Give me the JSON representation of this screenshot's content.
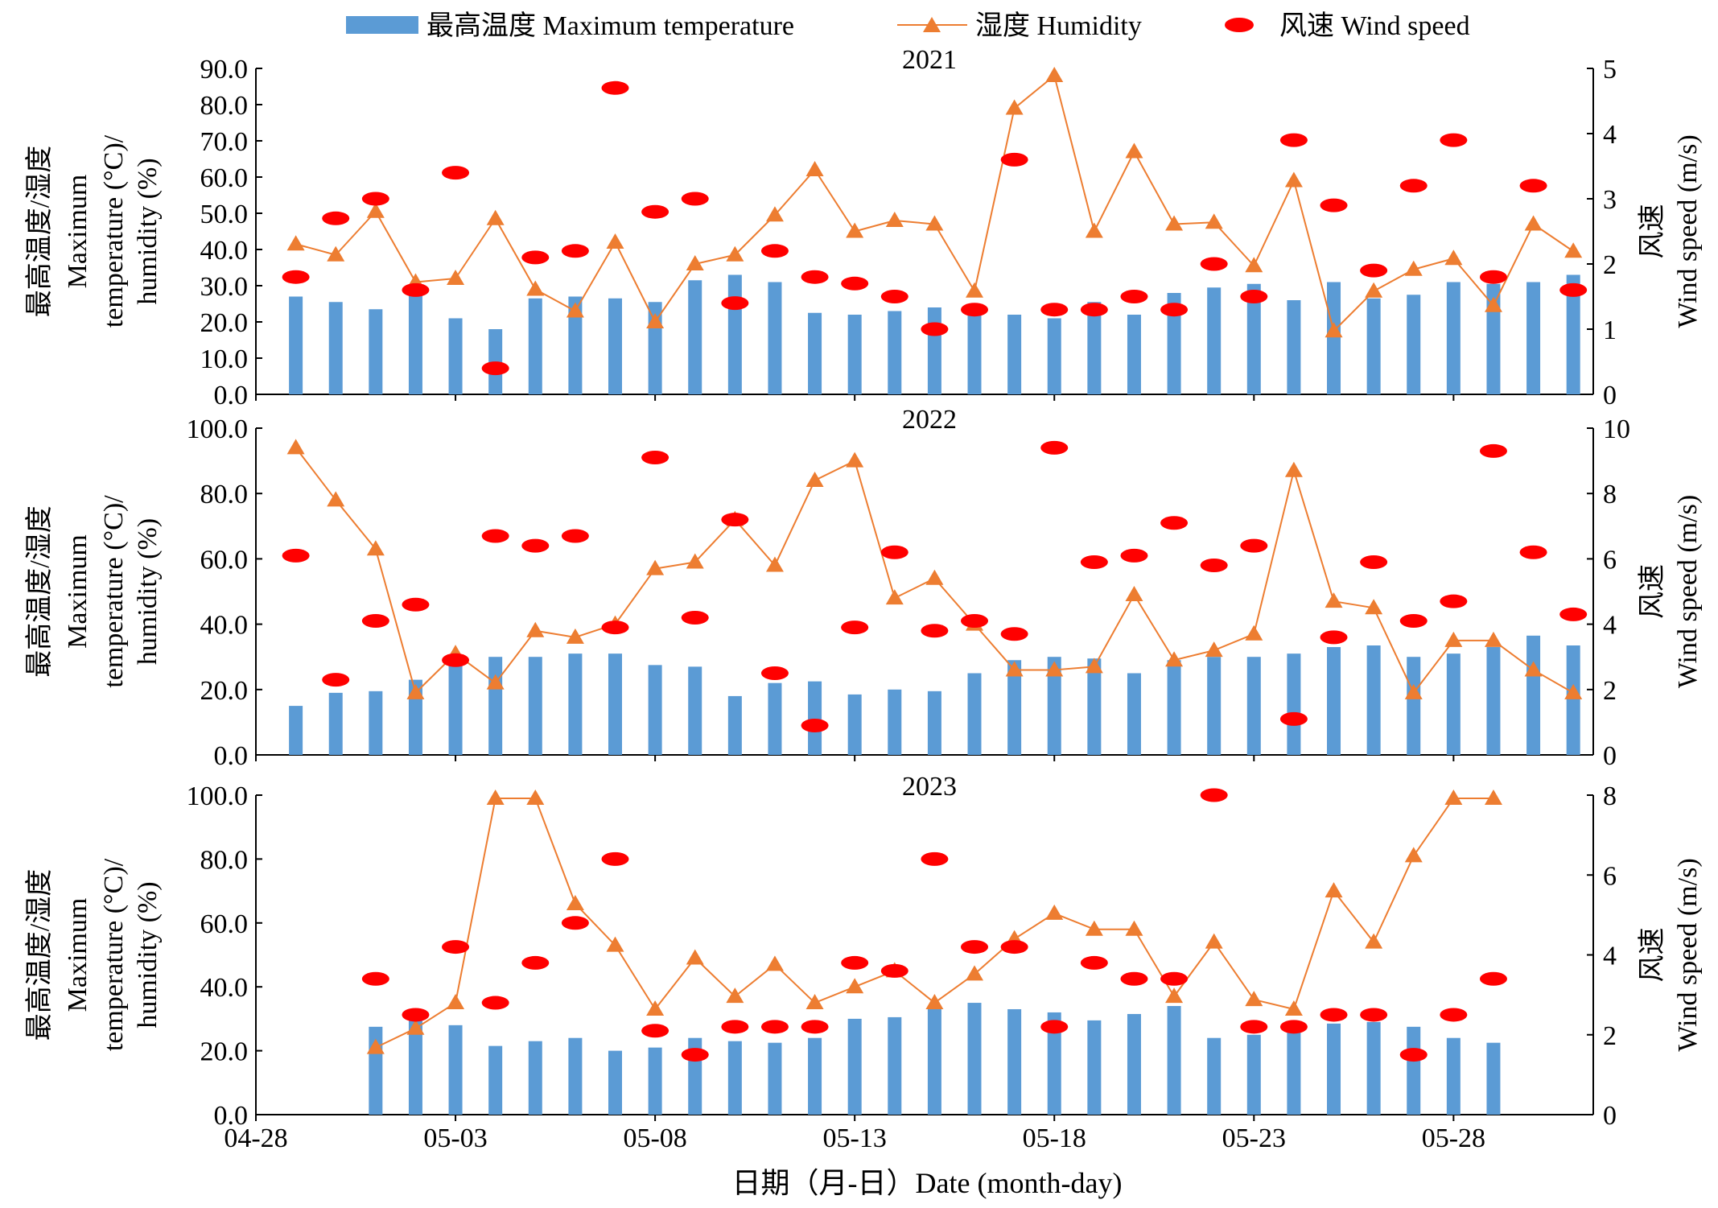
{
  "chart_data": {
    "type": "bar",
    "legend": [
      {
        "key": "temp",
        "label": "最高温度 Maximum temperature",
        "color": "#5b9bd5"
      },
      {
        "key": "humidity",
        "label": "湿度 Humidity",
        "color": "#ed7d31"
      },
      {
        "key": "wind",
        "label": "风速 Wind speed",
        "color": "#ff0000"
      }
    ],
    "xlabel": "日期（月-日）Date (month-day)",
    "x_ticks": [
      "04-28",
      "05-03",
      "05-08",
      "05-13",
      "05-18",
      "05-23",
      "05-28"
    ],
    "dates": [
      "04-28",
      "04-29",
      "04-30",
      "05-01",
      "05-02",
      "05-03",
      "05-04",
      "05-05",
      "05-06",
      "05-07",
      "05-08",
      "05-09",
      "05-10",
      "05-11",
      "05-12",
      "05-13",
      "05-14",
      "05-15",
      "05-16",
      "05-17",
      "05-18",
      "05-19",
      "05-20",
      "05-21",
      "05-22",
      "05-23",
      "05-24",
      "05-25",
      "05-26",
      "05-27",
      "05-28",
      "05-29",
      "05-30",
      "05-31"
    ],
    "panels": [
      {
        "title": "2021",
        "ylabel_left": [
          "最高温度/湿度",
          "Maximum",
          "temperature (°C)/",
          "humidity (%)"
        ],
        "ylabel_right": [
          "风速",
          "Wind speed (m/s)"
        ],
        "ylim_left": [
          0,
          90
        ],
        "yticks_left": [
          "0.0",
          "10.0",
          "20.0",
          "30.0",
          "40.0",
          "50.0",
          "60.0",
          "70.0",
          "80.0",
          "90.0"
        ],
        "ylim_right": [
          0,
          5
        ],
        "yticks_right": [
          "0",
          "1",
          "2",
          "3",
          "4",
          "5"
        ],
        "series": [
          {
            "name": "最高温度 Maximum temperature",
            "kind": "bar",
            "axis": "left",
            "values": [
              null,
              27,
              25.5,
              23.5,
              28.5,
              21,
              18,
              26.5,
              27,
              26.5,
              25.5,
              31.5,
              33,
              31,
              22.5,
              22,
              23,
              24,
              24.5,
              22,
              21,
              25.5,
              22,
              28,
              29.5,
              30.5,
              26,
              31,
              26.5,
              27.5,
              31,
              30.5,
              31,
              33
            ]
          },
          {
            "name": "湿度 Humidity",
            "kind": "line",
            "axis": "left",
            "values": [
              null,
              41.5,
              38.5,
              50.5,
              31,
              32,
              48.5,
              29,
              23,
              42,
              20,
              36,
              38.5,
              49.5,
              62,
              45,
              48,
              47,
              28.5,
              79,
              88,
              45,
              67,
              47,
              47.5,
              35.5,
              59,
              17.5,
              28.5,
              34.5,
              37.5,
              24.5,
              47,
              39.5
            ]
          },
          {
            "name": "风速 Wind speed",
            "kind": "scatter",
            "axis": "right",
            "values": [
              null,
              1.8,
              2.7,
              3.0,
              1.6,
              3.4,
              0.4,
              2.1,
              2.2,
              4.7,
              2.8,
              3.0,
              1.4,
              2.2,
              1.8,
              1.7,
              1.5,
              1.0,
              1.3,
              3.6,
              1.3,
              1.3,
              1.5,
              1.3,
              2.0,
              1.5,
              3.9,
              2.9,
              1.9,
              3.2,
              3.9,
              1.8,
              3.2,
              1.6
            ]
          }
        ]
      },
      {
        "title": "2022",
        "ylabel_left": [
          "最高温度/湿度",
          "Maximum",
          "temperature (°C)/",
          "humidity (%)"
        ],
        "ylabel_right": [
          "风速",
          "Wind speed (m/s)"
        ],
        "ylim_left": [
          0,
          100
        ],
        "yticks_left": [
          "0.0",
          "20.0",
          "40.0",
          "60.0",
          "80.0",
          "100.0"
        ],
        "ylim_right": [
          0,
          10
        ],
        "yticks_right": [
          "0",
          "2",
          "4",
          "6",
          "8",
          "10"
        ],
        "series": [
          {
            "name": "最高温度 Maximum temperature",
            "kind": "bar",
            "axis": "left",
            "values": [
              null,
              15,
              19,
              19.5,
              23,
              29,
              30,
              30,
              31,
              31,
              27.5,
              27,
              18,
              22,
              22.5,
              18.5,
              20,
              19.5,
              25,
              29,
              30,
              29.5,
              25,
              29,
              30,
              30,
              31,
              33,
              33.5,
              30,
              31,
              33,
              36.5,
              33.5
            ]
          },
          {
            "name": "湿度 Humidity",
            "kind": "line",
            "axis": "left",
            "values": [
              null,
              94,
              78,
              63,
              19,
              31,
              22,
              38,
              36,
              40,
              57,
              59,
              72,
              58,
              84,
              90,
              48,
              54,
              40,
              26,
              26,
              27,
              49,
              29,
              32,
              37,
              87,
              47,
              45,
              19,
              35,
              35,
              26,
              19
            ]
          },
          {
            "name": "风速 Wind speed",
            "kind": "scatter",
            "axis": "right",
            "values": [
              null,
              6.1,
              2.3,
              4.1,
              4.6,
              2.9,
              6.7,
              6.4,
              6.7,
              3.9,
              9.1,
              4.2,
              7.2,
              2.5,
              0.9,
              3.9,
              6.2,
              3.8,
              4.1,
              3.7,
              9.4,
              5.9,
              6.1,
              7.1,
              5.8,
              6.4,
              1.1,
              3.6,
              5.9,
              4.1,
              4.7,
              9.3,
              6.2,
              4.3
            ]
          }
        ]
      },
      {
        "title": "2023",
        "ylabel_left": [
          "最高温度/湿度",
          "Maximum",
          "temperature (°C)/",
          "humidity (%)"
        ],
        "ylabel_right": [
          "风速",
          "Wind speed (m/s)"
        ],
        "ylim_left": [
          0,
          100
        ],
        "yticks_left": [
          "0.0",
          "20.0",
          "40.0",
          "60.0",
          "80.0",
          "100.0"
        ],
        "ylim_right": [
          0,
          8
        ],
        "yticks_right": [
          "0",
          "2",
          "4",
          "6",
          "8"
        ],
        "series": [
          {
            "name": "最高温度 Maximum temperature",
            "kind": "bar",
            "axis": "left",
            "values": [
              null,
              null,
              null,
              27.5,
              30,
              28,
              21.5,
              23,
              24,
              20,
              21,
              24,
              23,
              22.5,
              24,
              30,
              30.5,
              33,
              35,
              33,
              32,
              29.5,
              31.5,
              34,
              24,
              25,
              27,
              28.5,
              29,
              27.5,
              24,
              22.5,
              null,
              null
            ]
          },
          {
            "name": "湿度 Humidity",
            "kind": "line",
            "axis": "left",
            "values": [
              null,
              null,
              null,
              21,
              27,
              35,
              99,
              99,
              66,
              53,
              33,
              49,
              37,
              47,
              35,
              40,
              45,
              35,
              44,
              55,
              63,
              58,
              58,
              37,
              54,
              36,
              33,
              70,
              54,
              81,
              99,
              99,
              null,
              null
            ]
          },
          {
            "name": "风速 Wind speed",
            "kind": "scatter",
            "axis": "right",
            "values": [
              null,
              null,
              null,
              3.4,
              2.5,
              4.2,
              2.8,
              3.8,
              4.8,
              6.4,
              2.1,
              1.5,
              2.2,
              2.2,
              2.2,
              3.8,
              3.6,
              6.4,
              4.2,
              4.2,
              2.2,
              3.8,
              3.4,
              3.4,
              8.0,
              2.2,
              2.2,
              2.5,
              2.5,
              1.5,
              2.5,
              3.4,
              null,
              null
            ]
          }
        ]
      }
    ]
  }
}
